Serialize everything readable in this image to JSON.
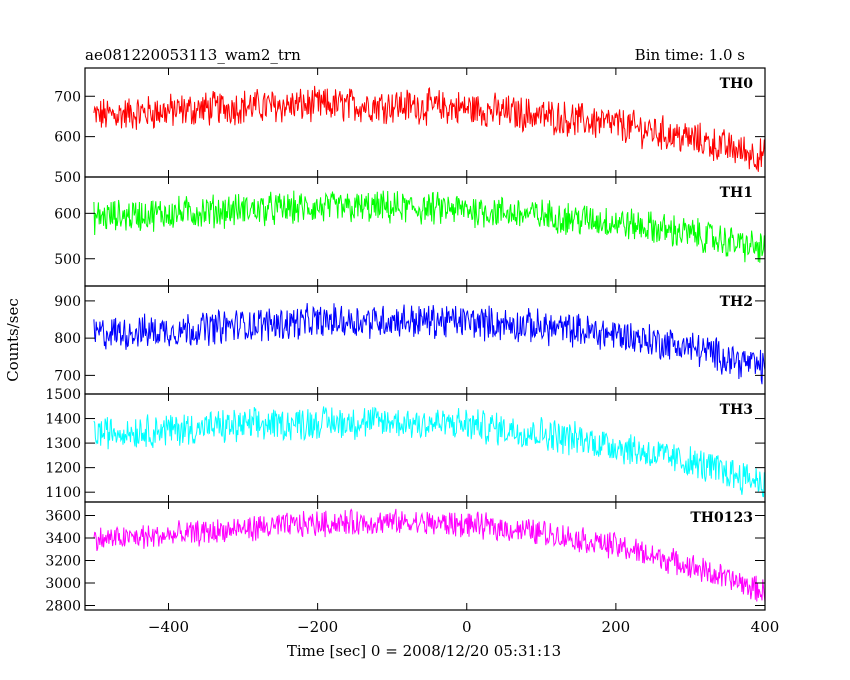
{
  "header": {
    "title": "ae081220053113_wam2_trn",
    "bin_time": "Bin time: 1.0 s"
  },
  "chart_data": {
    "type": "line",
    "xlabel": "Time [sec] 0 = 2008/12/20 05:31:13",
    "ylabel": "Counts/sec",
    "xlim": [
      -512,
      400
    ],
    "x_ticks": [
      -400,
      -200,
      0,
      200,
      400
    ],
    "x_tick_labels": [
      "−400",
      "−200",
      "0",
      "200",
      "400"
    ],
    "grid": false,
    "panels": [
      {
        "name": "TH0",
        "color": "#ff0000",
        "ylim": [
          500,
          770
        ],
        "y_ticks": [
          500,
          600,
          700
        ],
        "y_tick_labels": [
          "500",
          "600",
          "700"
        ],
        "trend_x": [
          -512,
          -400,
          -300,
          -200,
          -100,
          0,
          100,
          200,
          300,
          400
        ],
        "trend_y": [
          650,
          663,
          675,
          678,
          678,
          670,
          652,
          630,
          595,
          550
        ],
        "noise_amp": 38
      },
      {
        "name": "TH1",
        "color": "#00ff00",
        "ylim": [
          440,
          680
        ],
        "y_ticks": [
          500,
          600
        ],
        "y_tick_labels": [
          "500",
          "600"
        ],
        "trend_x": [
          -512,
          -400,
          -300,
          -200,
          -100,
          0,
          100,
          200,
          300,
          400
        ],
        "trend_y": [
          590,
          600,
          608,
          612,
          612,
          608,
          595,
          580,
          555,
          520
        ],
        "noise_amp": 32
      },
      {
        "name": "TH2",
        "color": "#0000ff",
        "ylim": [
          650,
          940
        ],
        "y_ticks": [
          700,
          800,
          900
        ],
        "y_tick_labels": [
          "700",
          "800",
          "900"
        ],
        "trend_x": [
          -512,
          -400,
          -300,
          -200,
          -100,
          0,
          100,
          200,
          300,
          400
        ],
        "trend_y": [
          810,
          820,
          835,
          845,
          848,
          845,
          830,
          810,
          775,
          720
        ],
        "noise_amp": 40
      },
      {
        "name": "TH3",
        "color": "#00ffff",
        "ylim": [
          1060,
          1500
        ],
        "y_ticks": [
          1100,
          1200,
          1300,
          1400,
          1500
        ],
        "y_tick_labels": [
          "1100",
          "1200",
          "1300",
          "1400",
          "1500"
        ],
        "trend_x": [
          -512,
          -400,
          -300,
          -200,
          -100,
          0,
          100,
          200,
          300,
          400
        ],
        "trend_y": [
          1340,
          1355,
          1370,
          1385,
          1385,
          1375,
          1340,
          1290,
          1220,
          1140
        ],
        "noise_amp": 60
      },
      {
        "name": "TH0123",
        "color": "#ff00ff",
        "ylim": [
          2760,
          3720
        ],
        "y_ticks": [
          2800,
          3000,
          3200,
          3400,
          3600
        ],
        "y_tick_labels": [
          "2800",
          "3000",
          "3200",
          "3400",
          "3600"
        ],
        "trend_x": [
          -512,
          -400,
          -300,
          -200,
          -100,
          0,
          100,
          200,
          300,
          400
        ],
        "trend_y": [
          3380,
          3420,
          3480,
          3530,
          3540,
          3520,
          3450,
          3330,
          3150,
          2920
        ],
        "noise_amp": 100
      }
    ]
  }
}
